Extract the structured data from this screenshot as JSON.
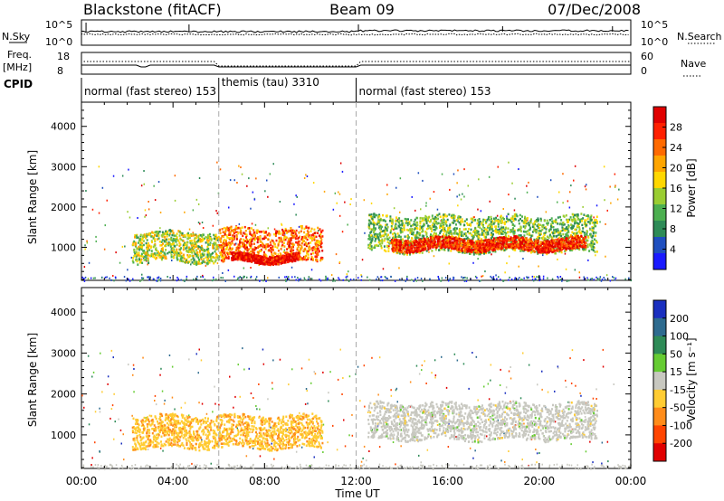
{
  "header": {
    "radar": "Blackstone (fitACF)",
    "beam": "Beam 09",
    "date": "07/Dec/2008"
  },
  "strips": {
    "nsky_label": "N.Sky",
    "nsky_ticks": [
      "10^5",
      "10^0"
    ],
    "nsearch_label": "N.Search",
    "nsearch_ticks": [
      "10^5",
      "10^0"
    ],
    "freq_label": "Freq.",
    "freq_unit": "[MHz]",
    "freq_ticks": [
      "18",
      "8"
    ],
    "nave_label": "Nave",
    "nave_ticks": [
      "60",
      "0"
    ],
    "cpid_label": "CPID",
    "cpid_segments": [
      {
        "name": "normal (fast stereo) 153",
        "start_hr": 0,
        "end_hr": 6
      },
      {
        "name": "themis (tau) 3310",
        "start_hr": 6,
        "end_hr": 12
      },
      {
        "name": "normal (fast stereo) 153",
        "start_hr": 12,
        "end_hr": 24
      }
    ]
  },
  "power_panel": {
    "ylabel": "Slant Range [km]",
    "yticks": [
      "4000",
      "3000",
      "2000",
      "1000"
    ],
    "colorbar_label": "Power [dB]",
    "colorbar_ticks": [
      "28",
      "24",
      "20",
      "16",
      "12",
      "8",
      "4"
    ],
    "colors": [
      "#1a1aff",
      "#1f4fbf",
      "#2e8b57",
      "#4caf50",
      "#9acd32",
      "#ffd700",
      "#ffa500",
      "#ff6a00",
      "#ff2000",
      "#e00000"
    ]
  },
  "velocity_panel": {
    "ylabel": "Slant Range [km]",
    "yticks": [
      "4000",
      "3000",
      "2000",
      "1000"
    ],
    "colorbar_label": "Velocity [m s⁻¹]",
    "colorbar_ticks": [
      "200",
      "100",
      "50",
      "15",
      "-15",
      "-50",
      "-100",
      "-200"
    ],
    "colors": [
      "#1a2fbf",
      "#2e6b8f",
      "#2e8b57",
      "#66cc33",
      "#c8c8c0",
      "#ffcc33",
      "#ff8c1a",
      "#ff4500",
      "#e00000"
    ]
  },
  "xaxis": {
    "label": "Time UT",
    "ticks": [
      "00:00",
      "04:00",
      "08:00",
      "12:00",
      "16:00",
      "20:00",
      "00:00"
    ]
  },
  "chart_data": {
    "type": "heatmap",
    "title": "Blackstone (fitACF)",
    "subtitle": "Beam 09   07/Dec/2008",
    "xlabel": "Time UT",
    "ylabel": "Slant Range [km]",
    "xlim_hours": [
      0,
      24
    ],
    "ylim_km": [
      180,
      4600
    ],
    "panels": [
      {
        "name": "Power",
        "unit": "dB",
        "colorbar_range": [
          0,
          30
        ],
        "echo_regions": [
          {
            "start_hr": 2.2,
            "end_hr": 6.0,
            "range_km": [
              650,
              1400
            ],
            "value": 14
          },
          {
            "start_hr": 6.0,
            "end_hr": 10.5,
            "range_km": [
              650,
              1500
            ],
            "value": 22
          },
          {
            "start_hr": 6.5,
            "end_hr": 9.5,
            "range_km": [
              650,
              850
            ],
            "value": 28
          },
          {
            "start_hr": 12.5,
            "end_hr": 22.5,
            "range_km": [
              900,
              1800
            ],
            "value": 12
          },
          {
            "start_hr": 13.5,
            "end_hr": 22.0,
            "range_km": [
              950,
              1250
            ],
            "value": 26
          }
        ]
      },
      {
        "name": "Velocity",
        "unit": "m s^-1",
        "colorbar_range": [
          -250,
          250
        ],
        "echo_regions": [
          {
            "start_hr": 2.2,
            "end_hr": 10.5,
            "range_km": [
              700,
              1500
            ],
            "value": -70
          },
          {
            "start_hr": 12.5,
            "end_hr": 22.5,
            "range_km": [
              900,
              1800
            ],
            "value": 0
          }
        ]
      }
    ],
    "cpid": [
      {
        "name": "normal (fast stereo) 153",
        "start_hr": 0,
        "end_hr": 6
      },
      {
        "name": "themis (tau) 3310",
        "start_hr": 6,
        "end_hr": 12
      },
      {
        "name": "normal (fast stereo) 153",
        "start_hr": 12,
        "end_hr": 24
      }
    ]
  }
}
